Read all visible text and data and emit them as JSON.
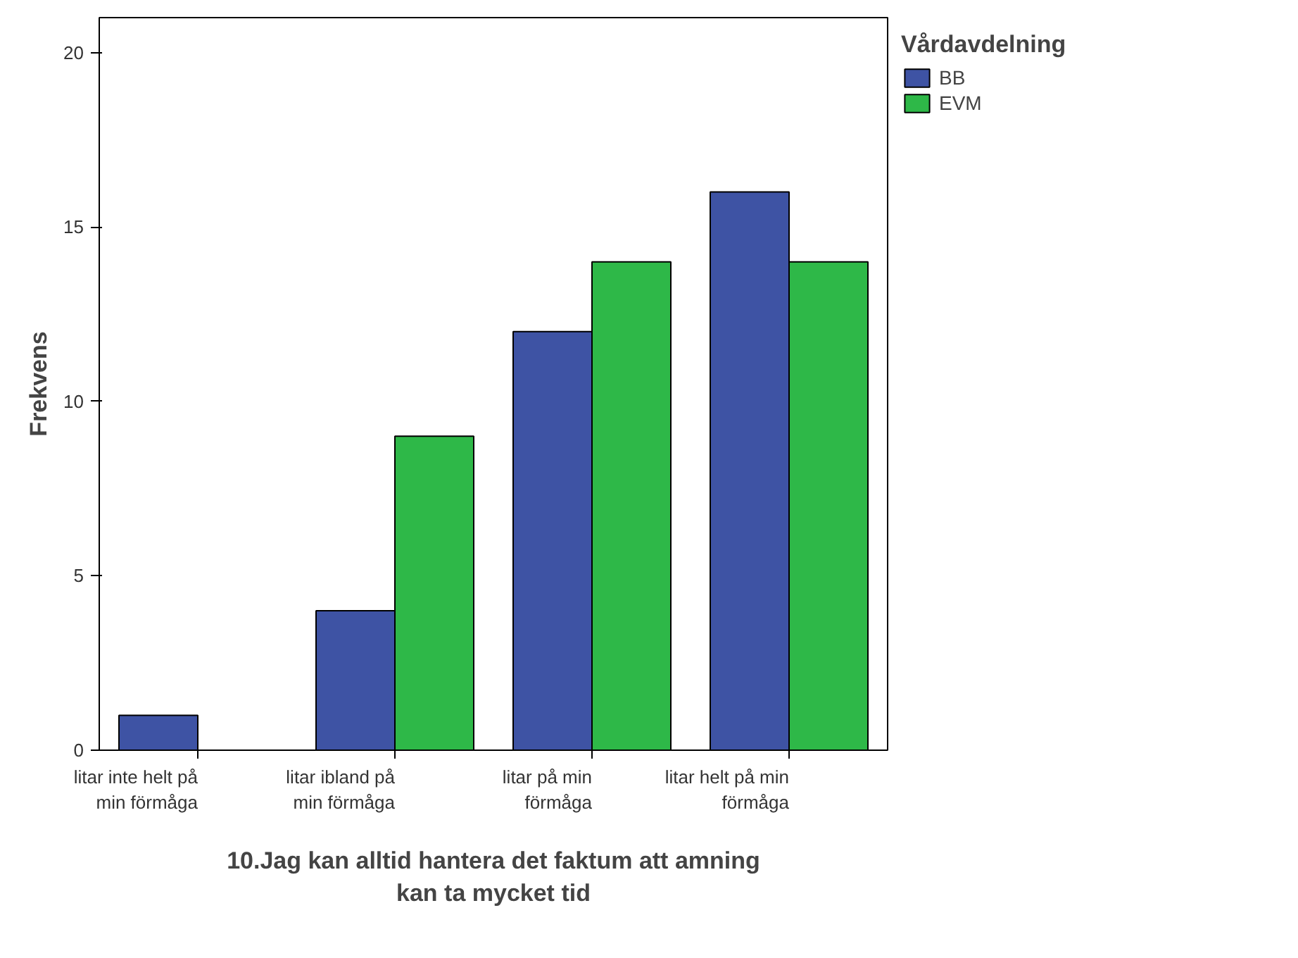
{
  "chart_data": {
    "type": "bar",
    "categories": [
      "litar inte helt på min förmåga",
      "litar ibland på min förmåga",
      "litar på min förmåga",
      "litar helt på min förmåga"
    ],
    "xlabel": "10.Jag kan alltid hantera det faktum att amning kan ta mycket tid",
    "ylabel": "Frekvens",
    "legend_title": "Vårdavdelning",
    "series": [
      {
        "name": "BB",
        "color": "#3e53a4",
        "values": [
          1,
          4,
          12,
          16
        ]
      },
      {
        "name": "EVM",
        "color": "#2eb848",
        "values": [
          null,
          9,
          14,
          14
        ]
      }
    ],
    "ylim": [
      0,
      21
    ],
    "yticks": [
      0,
      5,
      10,
      15,
      20
    ],
    "grid": false,
    "legend": "right"
  }
}
